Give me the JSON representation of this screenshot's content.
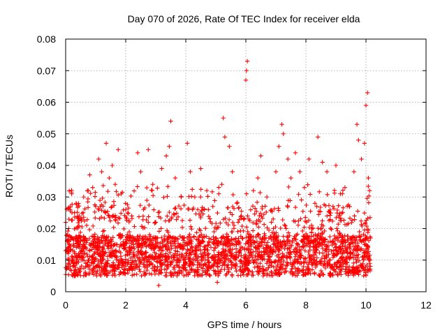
{
  "chart_data": {
    "type": "scatter",
    "title": "Day 070 of 2026, Rate Of TEC Index for receiver elda",
    "xlabel": "GPS time / hours",
    "ylabel": "ROTI / TECUs",
    "xlim": [
      0,
      12
    ],
    "ylim": [
      0,
      0.08
    ],
    "x_ticks": [
      0,
      2,
      4,
      6,
      8,
      10,
      12
    ],
    "y_ticks": [
      0,
      0.01,
      0.02,
      0.03,
      0.04,
      0.05,
      0.06,
      0.07,
      0.08
    ],
    "x_tick_labels": [
      "0",
      "2",
      "4",
      "6",
      "8",
      "10",
      "12"
    ],
    "y_tick_labels": [
      "0",
      "0.01",
      "0.02",
      "0.03",
      "0.04",
      "0.05",
      "0.06",
      "0.07",
      "0.08"
    ],
    "grid": true,
    "marker": "plus",
    "color": "#ff0000",
    "series": [
      {
        "name": "ROTI",
        "x_range": [
          0.0,
          10.15
        ],
        "baseline_range": [
          0.005,
          0.02
        ],
        "points": [
          [
            0.0,
            0.013
          ],
          [
            0.05,
            0.016
          ],
          [
            0.1,
            0.02
          ],
          [
            0.15,
            0.026
          ],
          [
            0.2,
            0.031
          ],
          [
            0.25,
            0.008
          ],
          [
            0.3,
            0.005
          ],
          [
            0.35,
            0.028
          ],
          [
            0.45,
            0.024
          ],
          [
            0.6,
            0.03
          ],
          [
            0.7,
            0.021
          ],
          [
            0.75,
            0.032
          ],
          [
            0.8,
            0.037
          ],
          [
            0.9,
            0.033
          ],
          [
            1.0,
            0.027
          ],
          [
            1.1,
            0.042
          ],
          [
            1.2,
            0.038
          ],
          [
            1.35,
            0.047
          ],
          [
            1.45,
            0.036
          ],
          [
            1.55,
            0.04
          ],
          [
            1.65,
            0.034
          ],
          [
            1.75,
            0.045
          ],
          [
            1.85,
            0.031
          ],
          [
            2.0,
            0.026
          ],
          [
            2.2,
            0.024
          ],
          [
            2.4,
            0.044
          ],
          [
            2.5,
            0.038
          ],
          [
            2.75,
            0.045
          ],
          [
            2.9,
            0.034
          ],
          [
            3.0,
            0.022
          ],
          [
            3.1,
            0.002
          ],
          [
            3.2,
            0.039
          ],
          [
            3.35,
            0.043
          ],
          [
            3.45,
            0.046
          ],
          [
            3.5,
            0.054
          ],
          [
            3.65,
            0.036
          ],
          [
            3.85,
            0.03
          ],
          [
            4.05,
            0.047
          ],
          [
            4.15,
            0.038
          ],
          [
            4.3,
            0.03
          ],
          [
            4.5,
            0.039
          ],
          [
            4.7,
            0.032
          ],
          [
            4.9,
            0.027
          ],
          [
            5.05,
            0.003
          ],
          [
            5.1,
            0.031
          ],
          [
            5.2,
            0.034
          ],
          [
            5.25,
            0.055
          ],
          [
            5.3,
            0.049
          ],
          [
            5.45,
            0.046
          ],
          [
            5.55,
            0.038
          ],
          [
            5.7,
            0.028
          ],
          [
            5.85,
            0.024
          ],
          [
            6.0,
            0.067
          ],
          [
            6.02,
            0.07
          ],
          [
            6.05,
            0.073
          ],
          [
            6.1,
            0.023
          ],
          [
            6.25,
            0.032
          ],
          [
            6.4,
            0.036
          ],
          [
            6.5,
            0.043
          ],
          [
            6.7,
            0.03
          ],
          [
            6.85,
            0.022
          ],
          [
            7.0,
            0.038
          ],
          [
            7.1,
            0.046
          ],
          [
            7.2,
            0.053
          ],
          [
            7.25,
            0.05
          ],
          [
            7.4,
            0.042
          ],
          [
            7.5,
            0.036
          ],
          [
            7.65,
            0.044
          ],
          [
            7.8,
            0.038
          ],
          [
            7.95,
            0.033
          ],
          [
            8.1,
            0.042
          ],
          [
            8.3,
            0.028
          ],
          [
            8.4,
            0.049
          ],
          [
            8.55,
            0.041
          ],
          [
            8.7,
            0.038
          ],
          [
            8.9,
            0.027
          ],
          [
            9.0,
            0.04
          ],
          [
            9.15,
            0.031
          ],
          [
            9.3,
            0.033
          ],
          [
            9.45,
            0.027
          ],
          [
            9.6,
            0.038
          ],
          [
            9.7,
            0.053
          ],
          [
            9.75,
            0.048
          ],
          [
            9.85,
            0.042
          ],
          [
            9.95,
            0.047
          ],
          [
            10.0,
            0.059
          ],
          [
            10.05,
            0.063
          ],
          [
            10.08,
            0.036
          ],
          [
            10.12,
            0.032
          ],
          [
            10.15,
            0.017
          ]
        ]
      }
    ]
  }
}
